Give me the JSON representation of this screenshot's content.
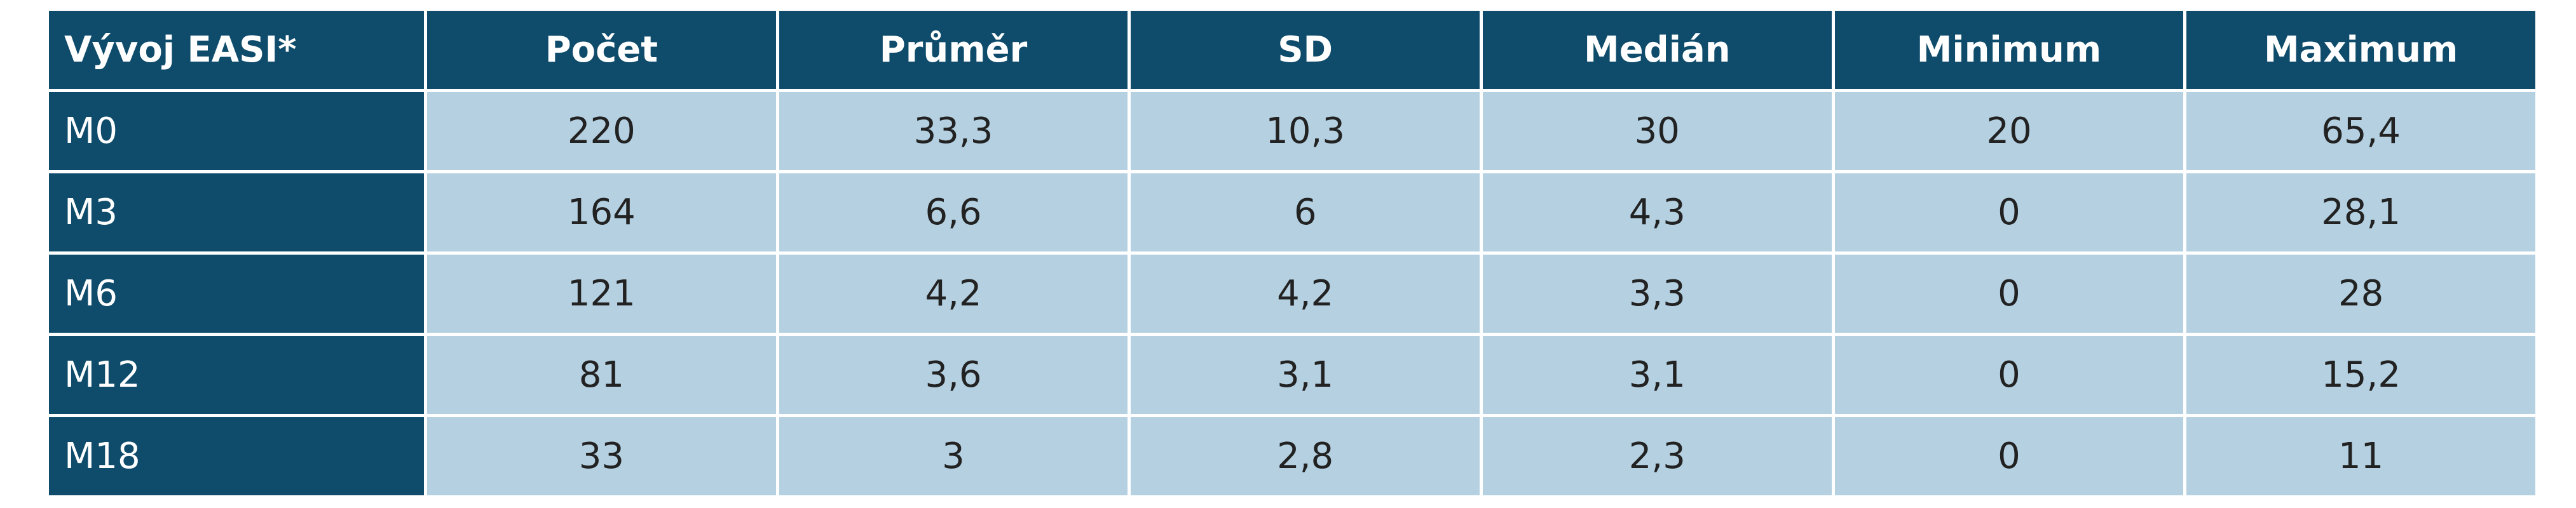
{
  "table": {
    "header": [
      "Vývoj EASI*",
      "Počet",
      "Průměr",
      "SD",
      "Medián",
      "Minimum",
      "Maximum"
    ],
    "rows": [
      [
        "M0",
        "220",
        "33,3",
        "10,3",
        "30",
        "20",
        "65,4"
      ],
      [
        "M3",
        "164",
        "6,6",
        "6",
        "4,3",
        "0",
        "28,1"
      ],
      [
        "M6",
        "121",
        "4,2",
        "4,2",
        "3,3",
        "0",
        "28"
      ],
      [
        "M12",
        "81",
        "3,6",
        "3,1",
        "3,1",
        "0",
        "15,2"
      ],
      [
        "M18",
        "33",
        "3",
        "2,8",
        "2,3",
        "0",
        "11"
      ]
    ]
  }
}
